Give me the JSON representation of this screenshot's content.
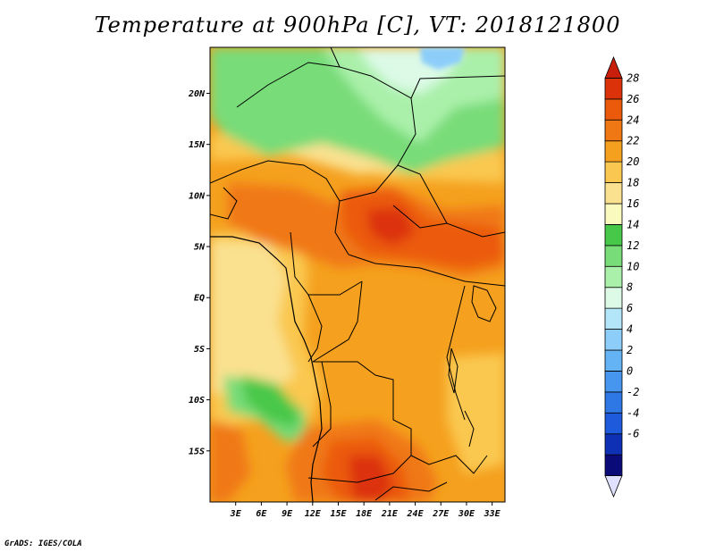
{
  "title": "Temperature at 900hPa [C], VT: 2018121800",
  "credit": "GrADS: IGES/COLA",
  "map": {
    "lon_range": [
      0,
      34.5
    ],
    "lat_range": [
      -20,
      24.5
    ],
    "lat_ticks": [
      {
        "value": 20,
        "label": "20N"
      },
      {
        "value": 15,
        "label": "15N"
      },
      {
        "value": 10,
        "label": "10N"
      },
      {
        "value": 5,
        "label": "5N"
      },
      {
        "value": 0,
        "label": "EQ"
      },
      {
        "value": -5,
        "label": "5S"
      },
      {
        "value": -10,
        "label": "10S"
      },
      {
        "value": -15,
        "label": "15S"
      }
    ],
    "lon_ticks": [
      {
        "value": 3,
        "label": "3E"
      },
      {
        "value": 6,
        "label": "6E"
      },
      {
        "value": 9,
        "label": "9E"
      },
      {
        "value": 12,
        "label": "12E"
      },
      {
        "value": 15,
        "label": "15E"
      },
      {
        "value": 18,
        "label": "18E"
      },
      {
        "value": 21,
        "label": "21E"
      },
      {
        "value": 24,
        "label": "24E"
      },
      {
        "value": 27,
        "label": "27E"
      },
      {
        "value": 30,
        "label": "30E"
      },
      {
        "value": 33,
        "label": "33E"
      }
    ]
  },
  "colorbar": {
    "levels": [
      "28",
      "26",
      "24",
      "22",
      "20",
      "18",
      "16",
      "14",
      "12",
      "10",
      "8",
      "6",
      "4",
      "2",
      "0",
      "-2",
      "-4",
      "-6"
    ],
    "colors": [
      "#e0e0ff",
      "#0a0a78",
      "#0e30b4",
      "#1e5adc",
      "#2e78e6",
      "#4696f0",
      "#64b4f5",
      "#8ccdfa",
      "#b4e6fa",
      "#dcfae6",
      "#aaf0aa",
      "#78dc78",
      "#48c848",
      "#fafabe",
      "#fae190",
      "#fac850",
      "#f5a01e",
      "#f07814",
      "#eb5a0a",
      "#dc320a",
      "#c81e0a"
    ]
  }
}
